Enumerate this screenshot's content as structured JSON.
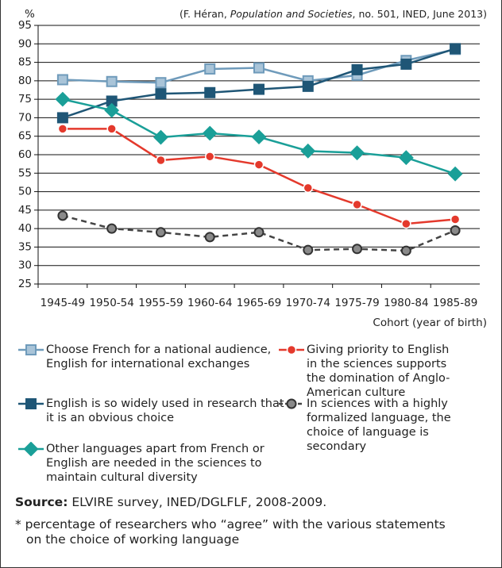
{
  "chart_data": {
    "type": "line",
    "unit_label": "%",
    "citation": [
      "(F. Héran, ",
      "Population and Societies",
      ", no. 501, INED, June 2013)"
    ],
    "x_label": "Cohort (year of birth)",
    "categories": [
      "1945-49",
      "1950-54",
      "1955-59",
      "1960-64",
      "1965-69",
      "1970-74",
      "1975-79",
      "1980-84",
      "1985-89"
    ],
    "ylim": [
      25,
      95
    ],
    "yticks": [
      25,
      30,
      35,
      40,
      45,
      50,
      55,
      60,
      65,
      70,
      75,
      80,
      85,
      90,
      95
    ],
    "grid": true,
    "series": [
      {
        "name": "Choose French for a national audience, English for international exchanges",
        "color": "#6f9bbb",
        "marker": "square",
        "marker_fill": "#a9c4d8",
        "values": [
          80.3,
          79.8,
          79.5,
          83.2,
          83.5,
          80,
          81.5,
          85.5,
          88.5
        ]
      },
      {
        "name": "English is so widely used in research that it is an obvious choice",
        "color": "#1f5676",
        "marker": "square",
        "marker_fill": "#1f5676",
        "values": [
          70,
          74.5,
          76.5,
          76.8,
          77.7,
          78.5,
          83,
          84.5,
          88.7
        ]
      },
      {
        "name": "Other languages apart from French or English are needed in the sciences to maintain cultural diversity",
        "color": "#1a9f98",
        "marker": "diamond",
        "marker_fill": "#1a9f98",
        "values": [
          75,
          72,
          64.7,
          65.8,
          64.8,
          61,
          60.5,
          59.2,
          54.8
        ]
      },
      {
        "name": "Giving priority to English in the sciences supports the domination of Anglo-American culture",
        "color": "#e4392c",
        "marker": "circle",
        "marker_fill": "#e4392c",
        "values": [
          67,
          67,
          58.5,
          59.5,
          57.3,
          51,
          46.5,
          41.3,
          42.5
        ]
      },
      {
        "name": "In sciences with a highly formalized language, the choice of language is secondary",
        "color": "#444444",
        "marker": "circle",
        "marker_fill": "#8a8a8a",
        "dashed": true,
        "values": [
          43.5,
          40,
          39,
          37.7,
          39,
          34.2,
          34.5,
          34,
          39.5
        ]
      }
    ]
  },
  "footer": {
    "source_label": "Source:",
    "source": " ELVIRE survey, INED/DGLFLF, 2008-2009.",
    "note": "* percentage of researchers who “agree” with the various statements on the choice of working language"
  }
}
